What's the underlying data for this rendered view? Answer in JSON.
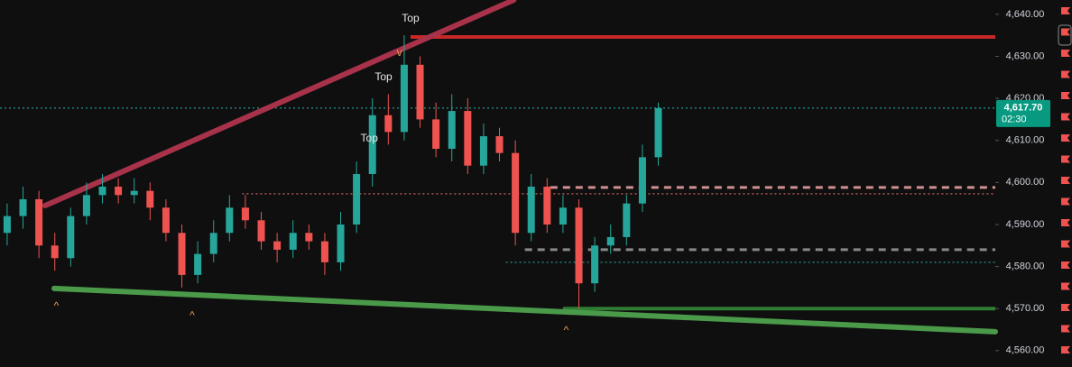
{
  "chart_data": {
    "type": "candlestick",
    "up_color": "#26a69a",
    "down_color": "#ef5350",
    "xlim": [
      -0.45,
      62.22
    ],
    "ylim": [
      4556.1,
      4643.4
    ],
    "yticks": [
      {
        "value": 4560,
        "label": "4,560.00"
      },
      {
        "value": 4570,
        "label": "4,570.00"
      },
      {
        "value": 4580,
        "label": "4,580.00"
      },
      {
        "value": 4590,
        "label": "4,590.00"
      },
      {
        "value": 4600,
        "label": "4,600.00"
      },
      {
        "value": 4610,
        "label": "4,610.00"
      },
      {
        "value": 4620,
        "label": "4,620.00"
      },
      {
        "value": 4630,
        "label": "4,630.00"
      },
      {
        "value": 4640,
        "label": "4,640.00"
      }
    ],
    "open": [
      4588,
      4592,
      4596,
      4585,
      4582,
      4592,
      4597,
      4599,
      4597,
      4598,
      4594,
      4588,
      4578,
      4583,
      4588,
      4594,
      4591,
      4586,
      4584,
      4588,
      4586,
      4581,
      4590,
      4602,
      4616,
      4612,
      4628,
      4615,
      4608,
      4617,
      4604,
      4611,
      4607,
      4588,
      4599,
      4590,
      4594,
      4576,
      4585,
      4587,
      4595,
      4606
    ],
    "high": [
      4595,
      4599,
      4598,
      4588,
      4594,
      4600,
      4602,
      4601,
      4601,
      4600,
      4596,
      4590,
      4586,
      4591,
      4597,
      4597,
      4593,
      4588,
      4591,
      4590,
      4588,
      4593,
      4605,
      4620,
      4621,
      4635,
      4630,
      4619,
      4621,
      4620,
      4614,
      4613,
      4610,
      4602,
      4601,
      4597,
      4596,
      4587,
      4590,
      4597,
      4609,
      4619
    ],
    "low": [
      4585,
      4589,
      4582,
      4579,
      4580,
      4590,
      4595,
      4595,
      4595,
      4591,
      4586,
      4575,
      4576,
      4581,
      4586,
      4589,
      4584,
      4581,
      4582,
      4584,
      4578,
      4579,
      4588,
      4599,
      4609,
      4610,
      4613,
      4606,
      4605,
      4602,
      4602,
      4605,
      4585,
      4586,
      4588,
      4588,
      4570,
      4574,
      4583,
      4585,
      4593,
      4604
    ],
    "close": [
      4592,
      4596,
      4585,
      4582,
      4592,
      4597,
      4599,
      4597,
      4598,
      4594,
      4588,
      4578,
      4583,
      4588,
      4594,
      4591,
      4586,
      4584,
      4588,
      4586,
      4581,
      4590,
      4602,
      4616,
      4612,
      4628,
      4615,
      4608,
      4617,
      4604,
      4611,
      4607,
      4588,
      4599,
      4590,
      4594,
      4576,
      4585,
      4587,
      4595,
      4606,
      4617.7
    ],
    "levels": [
      {
        "value": 4634.6,
        "x": [
          25.4,
          62.22
        ],
        "color": "#c62828",
        "style": "solid"
      },
      {
        "value": 4570,
        "x": [
          35,
          62.22
        ],
        "color": "#2e7d32",
        "style": "solid"
      },
      {
        "value": 4598.8,
        "x": [
          34.2,
          62.22
        ],
        "color": "#d09090",
        "style": "dashed"
      },
      {
        "value": 4597.3,
        "x": [
          14.8,
          62.22
        ],
        "color": "#e07070",
        "style": "dotted"
      },
      {
        "value": 4584,
        "x": [
          32.6,
          62.22
        ],
        "color": "#888888",
        "style": "dashed"
      },
      {
        "value": 4581,
        "x": [
          31.4,
          62.22
        ],
        "color": "#26a69a",
        "style": "dotted"
      },
      {
        "value": 4617.7,
        "x": [
          -0.45,
          62.22
        ],
        "color": "#26a69a",
        "style": "dotted"
      }
    ],
    "trendlines": [
      {
        "x": [
          2.39,
          31.9
        ],
        "y": [
          4594.5,
          4643.4
        ],
        "color": "#a8324a"
      },
      {
        "x": [
          2.96,
          62.22
        ],
        "y": [
          4574.8,
          4564.5
        ],
        "color": "#4a9a4a"
      }
    ],
    "annotations": [
      {
        "text": "Top",
        "x": 25.4,
        "y": 4638.9,
        "class": "annot"
      },
      {
        "text": "Top",
        "x": 23.7,
        "y": 4625,
        "class": "annot"
      },
      {
        "text": "Top",
        "x": 22.8,
        "y": 4610.4,
        "class": "annot"
      },
      {
        "text": "^",
        "x": 3.1,
        "y": 4570.5,
        "class": "caret"
      },
      {
        "text": "^",
        "x": 11.65,
        "y": 4568.3,
        "class": "caret"
      },
      {
        "text": "^",
        "x": 35.2,
        "y": 4564.7,
        "class": "caret"
      },
      {
        "text": "v",
        "x": 24.7,
        "y": 4630.8,
        "class": "caret"
      }
    ],
    "price_label": {
      "value": 4617.7,
      "label": "4,617.70",
      "countdown": "02:30",
      "color": "#089981"
    }
  }
}
